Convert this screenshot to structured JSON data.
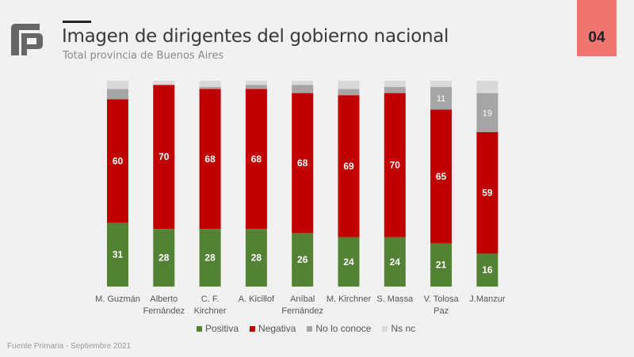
{
  "header": {
    "title": "Imagen de dirigentes del gobierno nacional",
    "subtitle": "Total provincia de Buenos Aires",
    "slide_number": "04",
    "badge_color": "#f07470"
  },
  "footer": {
    "source": "Fuente Primaria - Septiembre 2021"
  },
  "chart_data": {
    "type": "bar",
    "stacked": true,
    "title": "Imagen de dirigentes del gobierno nacional",
    "subtitle": "Total provincia de Buenos Aires",
    "xlabel": "",
    "ylabel": "",
    "ylim": [
      0,
      100
    ],
    "grid": false,
    "legend_position": "bottom",
    "categories": [
      "M. Guzmán",
      "Alberto Fernández",
      "C. F. Kirchner",
      "A. Kicillof",
      "Aníbal Fernández",
      "M. Kirchner",
      "S. Massa",
      "V. Tolosa Paz",
      "J.Manzur"
    ],
    "category_lines": [
      [
        "M. Guzmán"
      ],
      [
        "Alberto",
        "Fernández"
      ],
      [
        "C. F.",
        "Kirchner"
      ],
      [
        "A. Kicillof"
      ],
      [
        "Aníbal",
        "Fernández"
      ],
      [
        "M. Kirchner"
      ],
      [
        "S. Massa"
      ],
      [
        "V. Tolosa",
        "Paz"
      ],
      [
        "J.Manzur"
      ]
    ],
    "series": [
      {
        "name": "Positiva",
        "color": "#548235",
        "label_color": "#ffffff",
        "values": [
          31,
          28,
          28,
          28,
          26,
          24,
          24,
          21,
          16
        ],
        "show_labels": [
          true,
          true,
          true,
          true,
          true,
          true,
          true,
          true,
          true
        ]
      },
      {
        "name": "Negativa",
        "color": "#c00000",
        "label_color": "#ffffff",
        "values": [
          60,
          70,
          68,
          68,
          68,
          69,
          70,
          65,
          59
        ],
        "show_labels": [
          true,
          true,
          true,
          true,
          true,
          true,
          true,
          true,
          true
        ]
      },
      {
        "name": "No lo conoce",
        "color": "#a5a5a5",
        "label_color": "#ffffff",
        "values": [
          5,
          0,
          1,
          2,
          4,
          3,
          3,
          11,
          19
        ],
        "show_labels": [
          false,
          false,
          false,
          false,
          false,
          false,
          false,
          true,
          true
        ]
      },
      {
        "name": "Ns nc",
        "color": "#d9d9d9",
        "label_color": "#ffffff",
        "values": [
          4,
          2,
          3,
          2,
          2,
          4,
          3,
          3,
          6
        ],
        "show_labels": [
          false,
          false,
          false,
          false,
          false,
          false,
          false,
          false,
          false
        ]
      }
    ]
  }
}
